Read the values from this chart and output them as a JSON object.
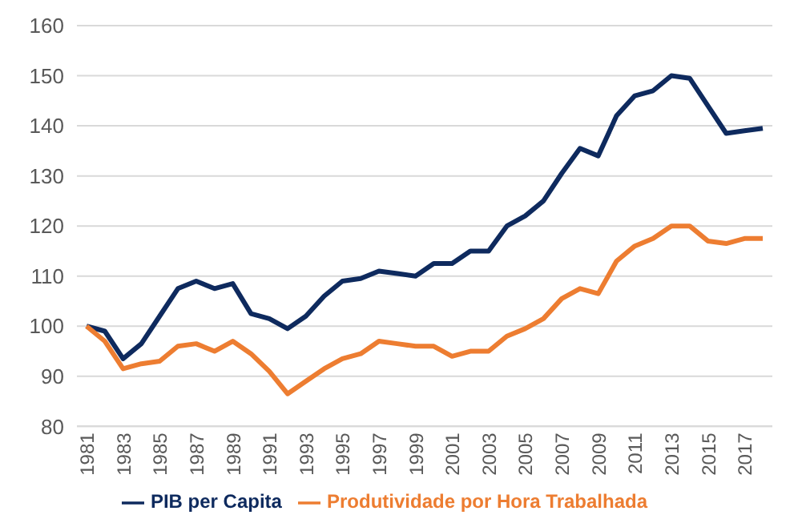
{
  "chart_data": {
    "type": "line",
    "categories": [
      "1981",
      null,
      "1983",
      null,
      "1985",
      null,
      "1987",
      null,
      "1989",
      null,
      "1991",
      null,
      "1993",
      null,
      "1995",
      null,
      "1997",
      null,
      "1999",
      null,
      "2001",
      null,
      "2003",
      null,
      "2005",
      null,
      "2007",
      null,
      "2009",
      null,
      "2011",
      null,
      "2013",
      null,
      "2015",
      null,
      "2017",
      null
    ],
    "series": [
      {
        "name": "PIB per Capita",
        "color": "#0e2a5e",
        "values": [
          100,
          99,
          93.5,
          96.5,
          102,
          107.5,
          109,
          107.5,
          108.5,
          102.5,
          101.5,
          99.5,
          102,
          106,
          109,
          109.5,
          111,
          110.5,
          110,
          112.5,
          112.5,
          115,
          115,
          120,
          122,
          125,
          130.5,
          135.5,
          134,
          142,
          146,
          147,
          150,
          149.5,
          144,
          138.5,
          139,
          139.5
        ]
      },
      {
        "name": "Produtividade por Hora Trabalhada",
        "color": "#ed7d31",
        "values": [
          100,
          97,
          91.5,
          92.5,
          93,
          96,
          96.5,
          95,
          97,
          94.5,
          91,
          86.5,
          89,
          91.5,
          93.5,
          94.5,
          97,
          96.5,
          96,
          96,
          94,
          95,
          95,
          98,
          99.5,
          101.5,
          105.5,
          107.5,
          106.5,
          113,
          116,
          117.5,
          120,
          120,
          117,
          116.5,
          117.5,
          117.5
        ]
      }
    ],
    "ylim": [
      80,
      160
    ],
    "yticks": [
      80,
      90,
      100,
      110,
      120,
      130,
      140,
      150,
      160
    ],
    "grid": "y",
    "legend": "bottom",
    "marker": "none",
    "line_style": "solid"
  }
}
